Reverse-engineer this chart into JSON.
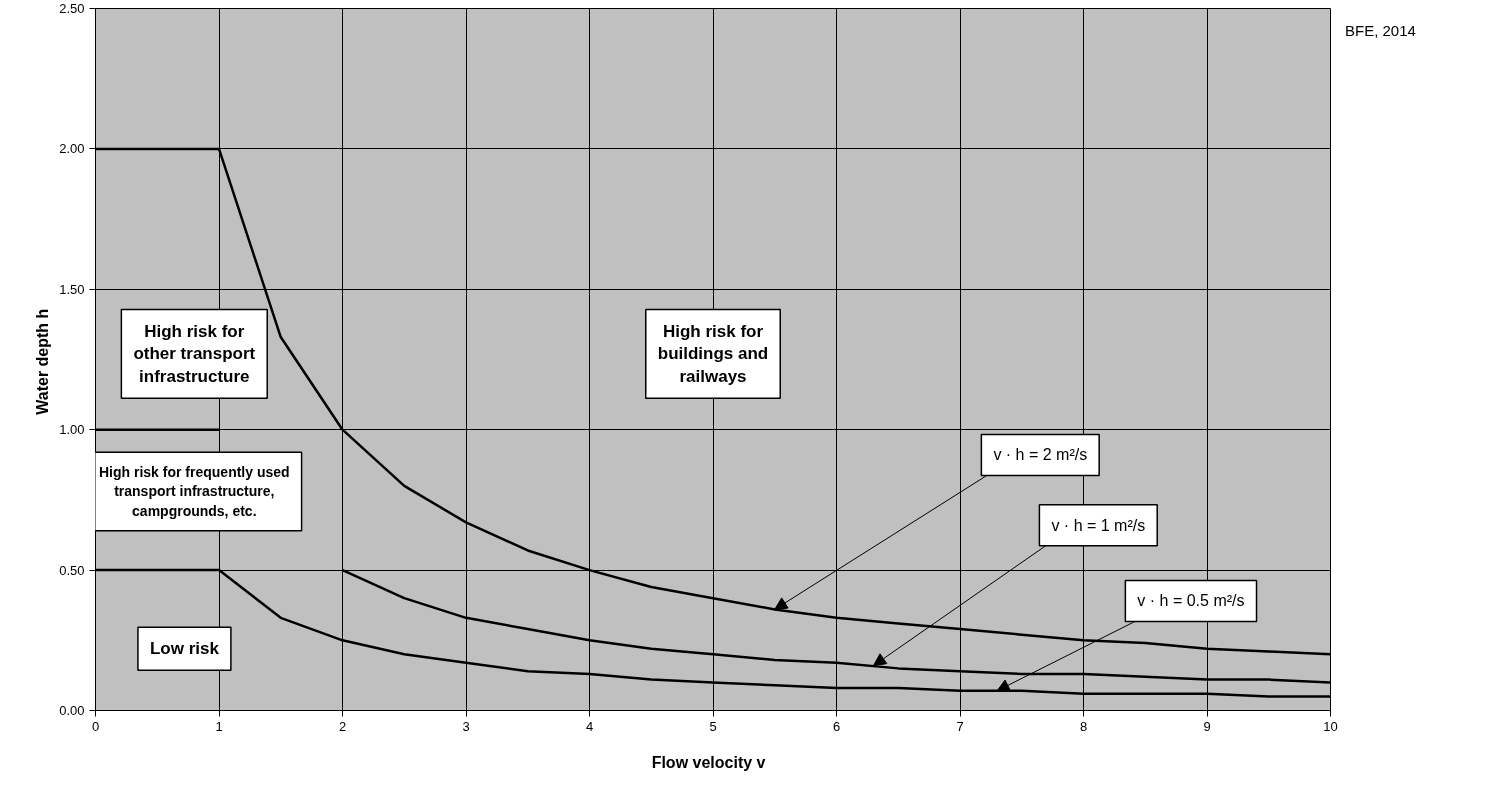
{
  "chart_data": {
    "type": "line",
    "xlabel": "Flow velocity   v",
    "ylabel": "Water depth  h",
    "series": [
      {
        "color": "#000000",
        "x": [
          0,
          1,
          1.5,
          2,
          2.5,
          3,
          3.5,
          4,
          4.5,
          5,
          5.5,
          6,
          6.5,
          7,
          7.5,
          8,
          8.5,
          9,
          9.5,
          10
        ],
        "values": [
          2.0,
          2.0,
          1.33,
          1.0,
          0.8,
          0.67,
          0.57,
          0.5,
          0.44,
          0.4,
          0.36,
          0.33,
          0.31,
          0.29,
          0.27,
          0.25,
          0.24,
          0.22,
          0.21,
          0.2
        ]
      },
      {
        "color": "#000000",
        "x": [
          0,
          1,
          1.5,
          2,
          2.5,
          3,
          3.5,
          4,
          4.5,
          5,
          5.5,
          6,
          6.5,
          7,
          7.5,
          8,
          8.5,
          9,
          9.5,
          10
        ],
        "values": [
          1.0,
          1.0,
          null,
          0.5,
          0.4,
          0.33,
          0.29,
          0.25,
          0.22,
          0.2,
          0.18,
          0.17,
          0.15,
          0.14,
          0.13,
          0.13,
          0.12,
          0.11,
          0.11,
          0.1
        ]
      },
      {
        "color": "#000000",
        "x": [
          0,
          1,
          1.5,
          2,
          2.5,
          3,
          3.5,
          4,
          4.5,
          5,
          5.5,
          6,
          6.5,
          7,
          7.5,
          8,
          8.5,
          9,
          9.5,
          10
        ],
        "values": [
          0.5,
          0.5,
          0.33,
          0.25,
          0.2,
          0.17,
          0.14,
          0.13,
          0.11,
          0.1,
          0.09,
          0.08,
          0.08,
          0.07,
          0.07,
          0.06,
          0.06,
          0.06,
          0.05,
          0.05
        ]
      }
    ],
    "xlim": [
      0,
      10
    ],
    "ylim": [
      0,
      2.5
    ],
    "xticks": [
      0,
      1,
      2,
      3,
      4,
      5,
      6,
      7,
      8,
      9,
      10
    ],
    "yticks": [
      {
        "value": 0,
        "label": "0.00"
      },
      {
        "value": 0.5,
        "label": "0.50"
      },
      {
        "value": 1,
        "label": "1.00"
      },
      {
        "value": 1.5,
        "label": "1.50"
      },
      {
        "value": 2,
        "label": "2.00"
      },
      {
        "value": 2.5,
        "label": "2.50"
      }
    ],
    "grid": true,
    "marker": "none",
    "line_style": "solid",
    "annotations": [
      "High risk for\nother transport\ninfrastructure",
      "High risk for\nbuildings and\nrailways",
      "High risk for frequently used\ntransport infrastructure,\ncampgrounds, etc.",
      "Low risk",
      {
        "text": "v · h = 2 m²/s",
        "x": 5.5,
        "y": 0.36
      },
      {
        "text": "v · h = 1 m²/s",
        "x": 6.3,
        "y": 0.16
      },
      {
        "text": "v · h = 0.5 m²/s",
        "x": 7.3,
        "y": 0.07
      },
      "BFE, 2014"
    ]
  }
}
